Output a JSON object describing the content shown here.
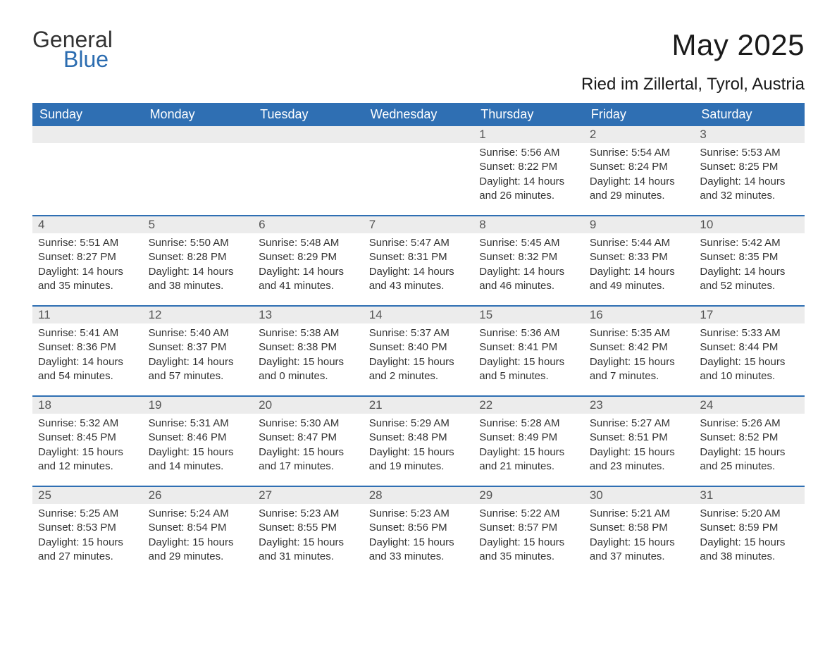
{
  "logo": {
    "text1": "General",
    "text2": "Blue"
  },
  "title": "May 2025",
  "location": "Ried im Zillertal, Tyrol, Austria",
  "colors": {
    "header_bg": "#2f6fb3",
    "header_text": "#ffffff",
    "daynum_bg": "#ececec",
    "daynum_text": "#555555",
    "body_text": "#333333",
    "rule": "#2f6fb3",
    "logo_blue": "#2b6cb0"
  },
  "fonts": {
    "title_size": 42,
    "location_size": 24,
    "header_size": 18,
    "daynum_size": 17,
    "body_size": 15
  },
  "day_names": [
    "Sunday",
    "Monday",
    "Tuesday",
    "Wednesday",
    "Thursday",
    "Friday",
    "Saturday"
  ],
  "weeks": [
    [
      {
        "n": "",
        "sunrise": "",
        "sunset": "",
        "daylight": ""
      },
      {
        "n": "",
        "sunrise": "",
        "sunset": "",
        "daylight": ""
      },
      {
        "n": "",
        "sunrise": "",
        "sunset": "",
        "daylight": ""
      },
      {
        "n": "",
        "sunrise": "",
        "sunset": "",
        "daylight": ""
      },
      {
        "n": "1",
        "sunrise": "Sunrise: 5:56 AM",
        "sunset": "Sunset: 8:22 PM",
        "daylight": "Daylight: 14 hours and 26 minutes."
      },
      {
        "n": "2",
        "sunrise": "Sunrise: 5:54 AM",
        "sunset": "Sunset: 8:24 PM",
        "daylight": "Daylight: 14 hours and 29 minutes."
      },
      {
        "n": "3",
        "sunrise": "Sunrise: 5:53 AM",
        "sunset": "Sunset: 8:25 PM",
        "daylight": "Daylight: 14 hours and 32 minutes."
      }
    ],
    [
      {
        "n": "4",
        "sunrise": "Sunrise: 5:51 AM",
        "sunset": "Sunset: 8:27 PM",
        "daylight": "Daylight: 14 hours and 35 minutes."
      },
      {
        "n": "5",
        "sunrise": "Sunrise: 5:50 AM",
        "sunset": "Sunset: 8:28 PM",
        "daylight": "Daylight: 14 hours and 38 minutes."
      },
      {
        "n": "6",
        "sunrise": "Sunrise: 5:48 AM",
        "sunset": "Sunset: 8:29 PM",
        "daylight": "Daylight: 14 hours and 41 minutes."
      },
      {
        "n": "7",
        "sunrise": "Sunrise: 5:47 AM",
        "sunset": "Sunset: 8:31 PM",
        "daylight": "Daylight: 14 hours and 43 minutes."
      },
      {
        "n": "8",
        "sunrise": "Sunrise: 5:45 AM",
        "sunset": "Sunset: 8:32 PM",
        "daylight": "Daylight: 14 hours and 46 minutes."
      },
      {
        "n": "9",
        "sunrise": "Sunrise: 5:44 AM",
        "sunset": "Sunset: 8:33 PM",
        "daylight": "Daylight: 14 hours and 49 minutes."
      },
      {
        "n": "10",
        "sunrise": "Sunrise: 5:42 AM",
        "sunset": "Sunset: 8:35 PM",
        "daylight": "Daylight: 14 hours and 52 minutes."
      }
    ],
    [
      {
        "n": "11",
        "sunrise": "Sunrise: 5:41 AM",
        "sunset": "Sunset: 8:36 PM",
        "daylight": "Daylight: 14 hours and 54 minutes."
      },
      {
        "n": "12",
        "sunrise": "Sunrise: 5:40 AM",
        "sunset": "Sunset: 8:37 PM",
        "daylight": "Daylight: 14 hours and 57 minutes."
      },
      {
        "n": "13",
        "sunrise": "Sunrise: 5:38 AM",
        "sunset": "Sunset: 8:38 PM",
        "daylight": "Daylight: 15 hours and 0 minutes."
      },
      {
        "n": "14",
        "sunrise": "Sunrise: 5:37 AM",
        "sunset": "Sunset: 8:40 PM",
        "daylight": "Daylight: 15 hours and 2 minutes."
      },
      {
        "n": "15",
        "sunrise": "Sunrise: 5:36 AM",
        "sunset": "Sunset: 8:41 PM",
        "daylight": "Daylight: 15 hours and 5 minutes."
      },
      {
        "n": "16",
        "sunrise": "Sunrise: 5:35 AM",
        "sunset": "Sunset: 8:42 PM",
        "daylight": "Daylight: 15 hours and 7 minutes."
      },
      {
        "n": "17",
        "sunrise": "Sunrise: 5:33 AM",
        "sunset": "Sunset: 8:44 PM",
        "daylight": "Daylight: 15 hours and 10 minutes."
      }
    ],
    [
      {
        "n": "18",
        "sunrise": "Sunrise: 5:32 AM",
        "sunset": "Sunset: 8:45 PM",
        "daylight": "Daylight: 15 hours and 12 minutes."
      },
      {
        "n": "19",
        "sunrise": "Sunrise: 5:31 AM",
        "sunset": "Sunset: 8:46 PM",
        "daylight": "Daylight: 15 hours and 14 minutes."
      },
      {
        "n": "20",
        "sunrise": "Sunrise: 5:30 AM",
        "sunset": "Sunset: 8:47 PM",
        "daylight": "Daylight: 15 hours and 17 minutes."
      },
      {
        "n": "21",
        "sunrise": "Sunrise: 5:29 AM",
        "sunset": "Sunset: 8:48 PM",
        "daylight": "Daylight: 15 hours and 19 minutes."
      },
      {
        "n": "22",
        "sunrise": "Sunrise: 5:28 AM",
        "sunset": "Sunset: 8:49 PM",
        "daylight": "Daylight: 15 hours and 21 minutes."
      },
      {
        "n": "23",
        "sunrise": "Sunrise: 5:27 AM",
        "sunset": "Sunset: 8:51 PM",
        "daylight": "Daylight: 15 hours and 23 minutes."
      },
      {
        "n": "24",
        "sunrise": "Sunrise: 5:26 AM",
        "sunset": "Sunset: 8:52 PM",
        "daylight": "Daylight: 15 hours and 25 minutes."
      }
    ],
    [
      {
        "n": "25",
        "sunrise": "Sunrise: 5:25 AM",
        "sunset": "Sunset: 8:53 PM",
        "daylight": "Daylight: 15 hours and 27 minutes."
      },
      {
        "n": "26",
        "sunrise": "Sunrise: 5:24 AM",
        "sunset": "Sunset: 8:54 PM",
        "daylight": "Daylight: 15 hours and 29 minutes."
      },
      {
        "n": "27",
        "sunrise": "Sunrise: 5:23 AM",
        "sunset": "Sunset: 8:55 PM",
        "daylight": "Daylight: 15 hours and 31 minutes."
      },
      {
        "n": "28",
        "sunrise": "Sunrise: 5:23 AM",
        "sunset": "Sunset: 8:56 PM",
        "daylight": "Daylight: 15 hours and 33 minutes."
      },
      {
        "n": "29",
        "sunrise": "Sunrise: 5:22 AM",
        "sunset": "Sunset: 8:57 PM",
        "daylight": "Daylight: 15 hours and 35 minutes."
      },
      {
        "n": "30",
        "sunrise": "Sunrise: 5:21 AM",
        "sunset": "Sunset: 8:58 PM",
        "daylight": "Daylight: 15 hours and 37 minutes."
      },
      {
        "n": "31",
        "sunrise": "Sunrise: 5:20 AM",
        "sunset": "Sunset: 8:59 PM",
        "daylight": "Daylight: 15 hours and 38 minutes."
      }
    ]
  ]
}
